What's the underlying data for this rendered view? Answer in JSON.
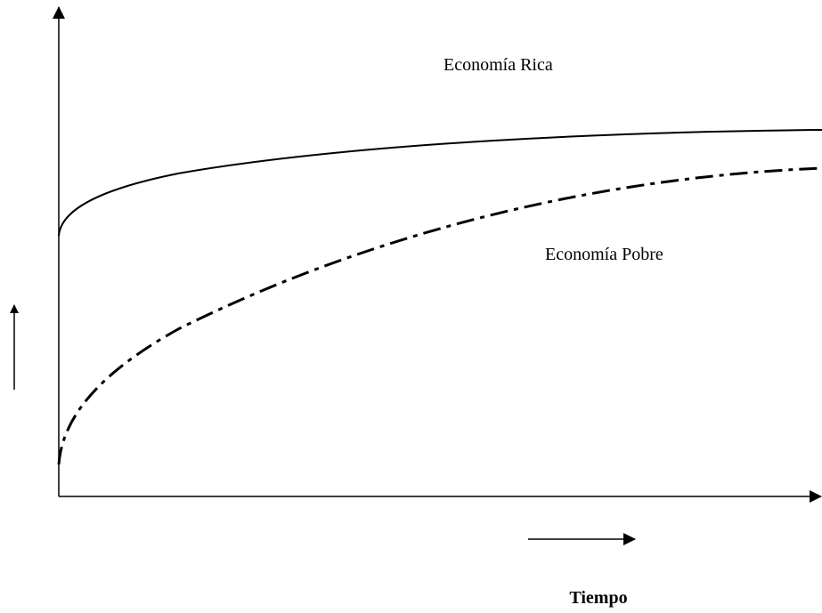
{
  "labels": {
    "rich": "Economía Rica",
    "poor": "Economía Pobre",
    "x_axis": "Tiempo"
  }
}
